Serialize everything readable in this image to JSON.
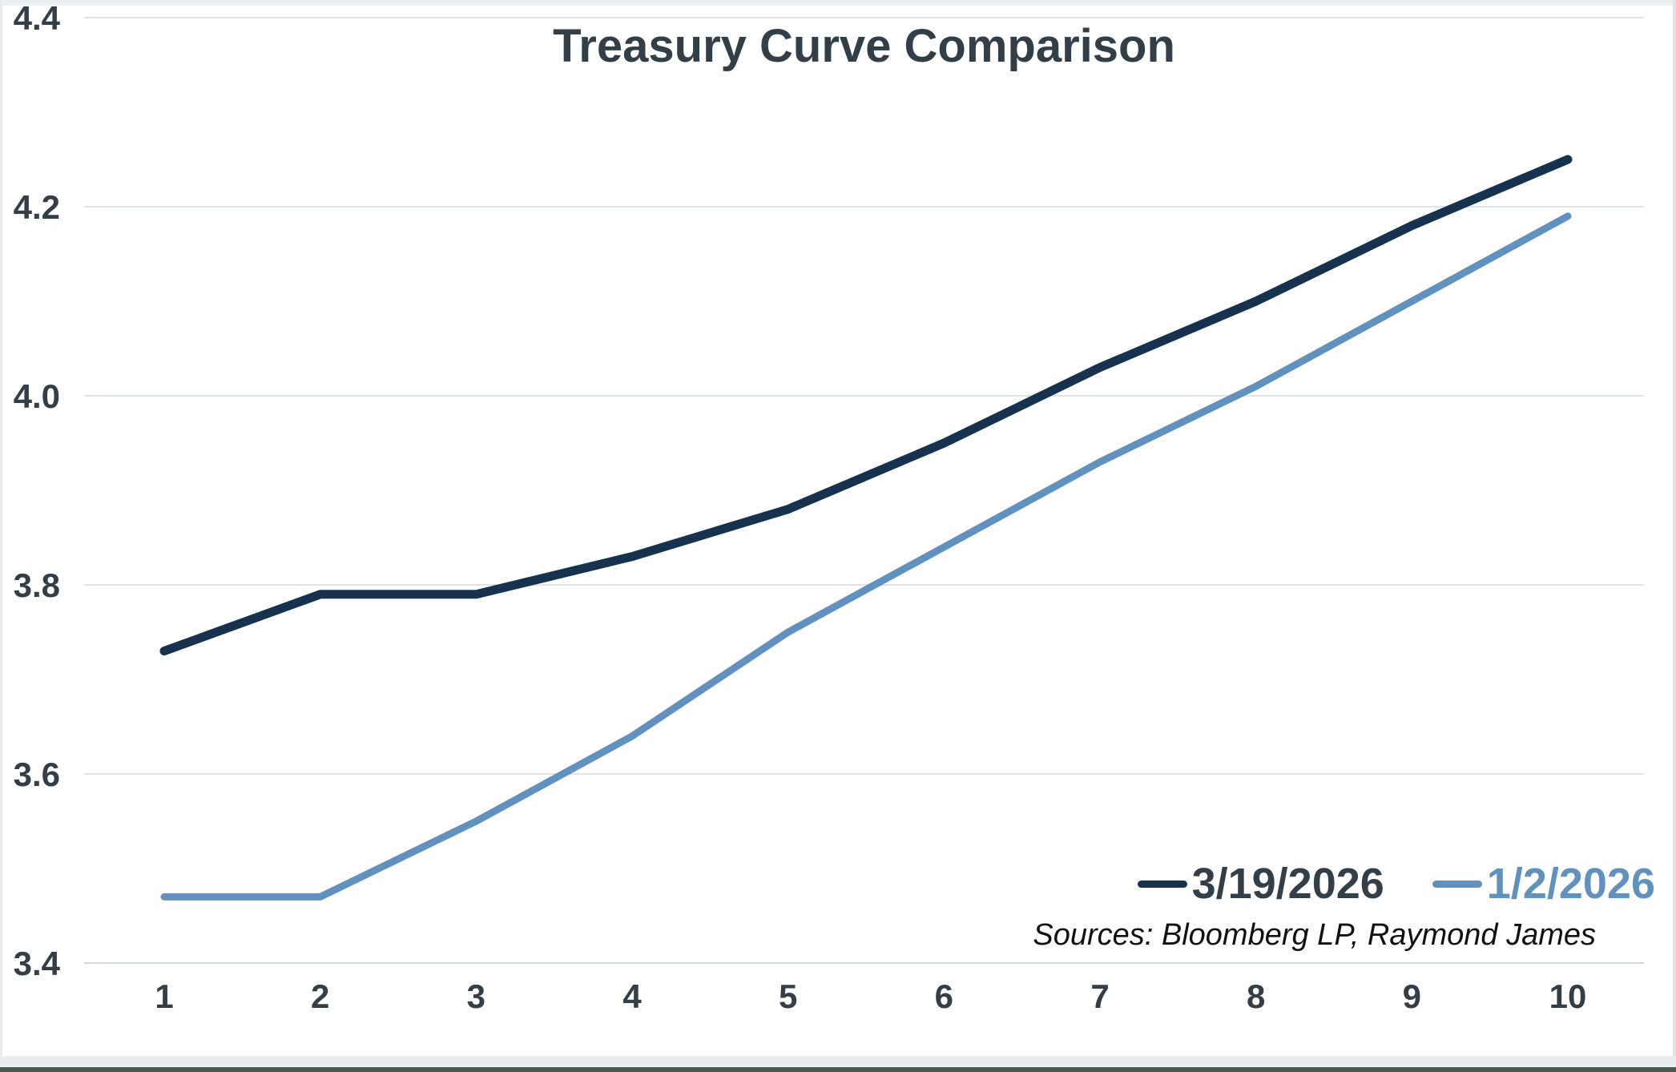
{
  "chart_data": {
    "type": "line",
    "title": "Treasury Curve Comparison",
    "x": [
      1,
      2,
      3,
      4,
      5,
      6,
      7,
      8,
      9,
      10
    ],
    "xtick_labels": [
      "1",
      "2",
      "3",
      "4",
      "5",
      "6",
      "7",
      "8",
      "9",
      "10"
    ],
    "series": [
      {
        "name": "3/19/2026",
        "color": "#16324f",
        "label_color": "#333f48",
        "stroke_width": 11,
        "values": [
          3.73,
          3.79,
          3.79,
          3.83,
          3.88,
          3.95,
          4.03,
          4.1,
          4.18,
          4.25
        ]
      },
      {
        "name": "1/2/2026",
        "color": "#6191be",
        "label_color": "#6191be",
        "stroke_width": 9,
        "values": [
          3.47,
          3.47,
          3.55,
          3.64,
          3.75,
          3.84,
          3.93,
          4.01,
          4.1,
          4.19
        ]
      }
    ],
    "ylim": [
      3.4,
      4.4
    ],
    "yticks": [
      3.4,
      3.6,
      3.8,
      4.0,
      4.2,
      4.4
    ],
    "ytick_labels": [
      "3.4",
      "3.6",
      "3.8",
      "4.0",
      "4.2",
      "4.4"
    ],
    "grid": "horizontal",
    "legend_position": "bottom-right",
    "source_note": "Sources: Bloomberg LP, Raymond James"
  },
  "colors": {
    "background": "#ffffff",
    "grid_line": "#dee4e8",
    "baseline_grid_line": "#d3dade",
    "axis_text": "#333f48",
    "title_text": "#333f48",
    "source_text": "#111111"
  }
}
